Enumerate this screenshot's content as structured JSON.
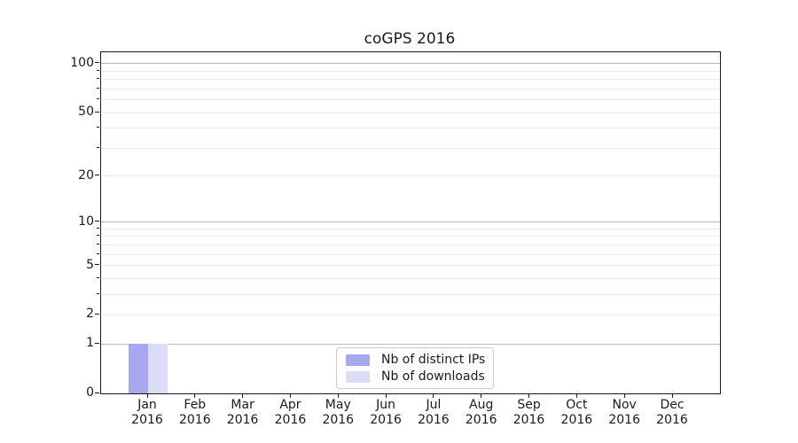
{
  "chart_data": {
    "type": "bar",
    "title": "coGPS 2016",
    "categories": [
      "Jan 2016",
      "Feb 2016",
      "Mar 2016",
      "Apr 2016",
      "May 2016",
      "Jun 2016",
      "Jul 2016",
      "Aug 2016",
      "Sep 2016",
      "Oct 2016",
      "Nov 2016",
      "Dec 2016"
    ],
    "series": [
      {
        "name": "Nb of distinct IPs",
        "color": "#a7a7f0",
        "values": [
          1,
          0,
          0,
          0,
          0,
          0,
          0,
          0,
          0,
          0,
          0,
          0
        ]
      },
      {
        "name": "Nb of downloads",
        "color": "#dcdcf8",
        "values": [
          1,
          0,
          0,
          0,
          0,
          0,
          0,
          0,
          0,
          0,
          0,
          0
        ]
      }
    ],
    "xlabel": "",
    "ylabel": "",
    "yscale": "log1p",
    "ylim": [
      0,
      117
    ],
    "ytick_values": [
      0,
      1,
      2,
      5,
      10,
      20,
      50,
      100
    ],
    "ytick_labels": [
      "0",
      "1",
      "2",
      "5",
      "10",
      "20",
      "50",
      "100"
    ],
    "grid": true,
    "grid_major_values": [
      1,
      10,
      100
    ],
    "grid_minor_values": [
      2,
      3,
      4,
      5,
      6,
      7,
      8,
      9,
      20,
      30,
      40,
      50,
      60,
      70,
      80,
      90
    ],
    "legend_position": "lower center"
  },
  "legend": {
    "items": [
      {
        "label": "Nb of distinct IPs",
        "color": "#a7a7f0"
      },
      {
        "label": "Nb of downloads",
        "color": "#dcdcf8"
      }
    ]
  },
  "colors": {
    "grid_major": "#b8b8b8",
    "grid_minor": "#ebebeb",
    "axis": "#1a1a1a",
    "background": "#ffffff"
  }
}
